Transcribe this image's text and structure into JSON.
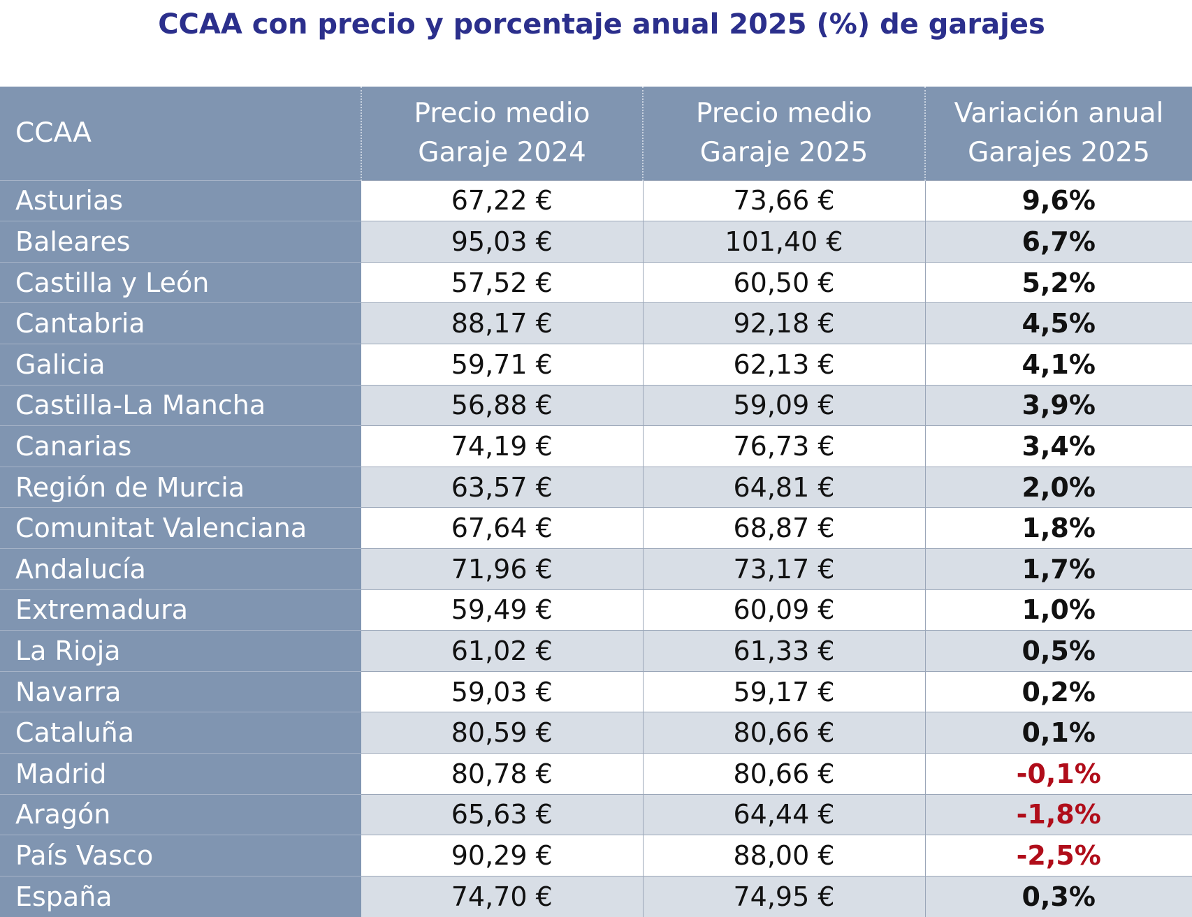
{
  "title": "CCAA con precio y porcentaje anual 2025 (%) de garajes",
  "colors": {
    "title": "#2b2f8c",
    "header_bg": "#8095b1",
    "alt_row_bg": "#d8dee6",
    "negative": "#b00d1a"
  },
  "table": {
    "headers": {
      "ccaa": "CCAA",
      "precio_2024_line1": "Precio medio",
      "precio_2024_line2": "Garaje 2024",
      "precio_2025_line1": "Precio medio",
      "precio_2025_line2": "Garaje 2025",
      "variacion_line1": "Variación anual",
      "variacion_line2": "Garajes 2025"
    },
    "rows": [
      {
        "ccaa": "Asturias",
        "p2024": "67,22 €",
        "p2025": "73,66 €",
        "var": "9,6%",
        "negative": false
      },
      {
        "ccaa": "Baleares",
        "p2024": "95,03 €",
        "p2025": "101,40 €",
        "var": "6,7%",
        "negative": false
      },
      {
        "ccaa": "Castilla y León",
        "p2024": "57,52 €",
        "p2025": "60,50 €",
        "var": "5,2%",
        "negative": false
      },
      {
        "ccaa": "Cantabria",
        "p2024": "88,17 €",
        "p2025": "92,18 €",
        "var": "4,5%",
        "negative": false
      },
      {
        "ccaa": "Galicia",
        "p2024": "59,71 €",
        "p2025": "62,13 €",
        "var": "4,1%",
        "negative": false
      },
      {
        "ccaa": "Castilla-La Mancha",
        "p2024": "56,88 €",
        "p2025": "59,09 €",
        "var": "3,9%",
        "negative": false
      },
      {
        "ccaa": "Canarias",
        "p2024": "74,19 €",
        "p2025": "76,73 €",
        "var": "3,4%",
        "negative": false
      },
      {
        "ccaa": "Región de Murcia",
        "p2024": "63,57 €",
        "p2025": "64,81 €",
        "var": "2,0%",
        "negative": false
      },
      {
        "ccaa": "Comunitat Valenciana",
        "p2024": "67,64 €",
        "p2025": "68,87 €",
        "var": "1,8%",
        "negative": false
      },
      {
        "ccaa": "Andalucía",
        "p2024": "71,96 €",
        "p2025": "73,17 €",
        "var": "1,7%",
        "negative": false
      },
      {
        "ccaa": "Extremadura",
        "p2024": "59,49 €",
        "p2025": "60,09 €",
        "var": "1,0%",
        "negative": false
      },
      {
        "ccaa": "La Rioja",
        "p2024": "61,02 €",
        "p2025": "61,33 €",
        "var": "0,5%",
        "negative": false
      },
      {
        "ccaa": "Navarra",
        "p2024": "59,03 €",
        "p2025": "59,17 €",
        "var": "0,2%",
        "negative": false
      },
      {
        "ccaa": "Cataluña",
        "p2024": "80,59 €",
        "p2025": "80,66 €",
        "var": "0,1%",
        "negative": false
      },
      {
        "ccaa": "Madrid",
        "p2024": "80,78 €",
        "p2025": "80,66 €",
        "var": "-0,1%",
        "negative": true
      },
      {
        "ccaa": "Aragón",
        "p2024": "65,63 €",
        "p2025": "64,44 €",
        "var": "-1,8%",
        "negative": true
      },
      {
        "ccaa": "País Vasco",
        "p2024": "90,29 €",
        "p2025": "88,00 €",
        "var": "-2,5%",
        "negative": true
      },
      {
        "ccaa": "España",
        "p2024": "74,70 €",
        "p2025": "74,95 €",
        "var": "0,3%",
        "negative": false
      }
    ]
  }
}
